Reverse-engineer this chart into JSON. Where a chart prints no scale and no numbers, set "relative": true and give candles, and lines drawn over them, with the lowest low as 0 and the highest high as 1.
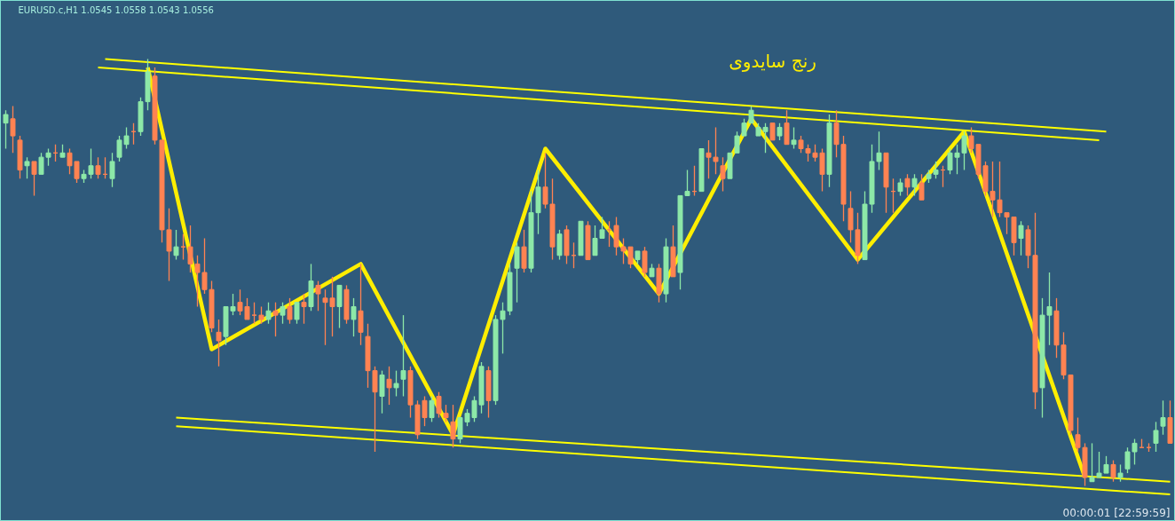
{
  "chart_data": {
    "type": "candlestick",
    "relative": true,
    "title": "رنج سایدوی",
    "tick_labels": false,
    "grid": false,
    "annotations": [
      "EURUSD.c,H1  1.0545 1.0558 1.0543 1.0556",
      "00:00:01 [22:59:59]"
    ],
    "categories": [
      null,
      null,
      null,
      null,
      null,
      null,
      null,
      null,
      null,
      null,
      null,
      null,
      null,
      null,
      null,
      null,
      null,
      null,
      null,
      null,
      null,
      null,
      null,
      null,
      null,
      null,
      null,
      null,
      null,
      null,
      null,
      null,
      null,
      null,
      null,
      null,
      null,
      null,
      null,
      null,
      null,
      null,
      null,
      null,
      null,
      null,
      null,
      null,
      null,
      null,
      null,
      null,
      null,
      null,
      null,
      null,
      null,
      null,
      null,
      null,
      null,
      null,
      null,
      null,
      null,
      null,
      null,
      null,
      null,
      null,
      null,
      null,
      null,
      null,
      null,
      null,
      null,
      null,
      null,
      null,
      null,
      null,
      null,
      null,
      null,
      null,
      null,
      null,
      null,
      null,
      null,
      null,
      null,
      null,
      null,
      null,
      null,
      null,
      null,
      null,
      null,
      null,
      null,
      null,
      null,
      null,
      null,
      null,
      null,
      null,
      null,
      null,
      null,
      null,
      null,
      null,
      null,
      null,
      null,
      null,
      null,
      null,
      null,
      null,
      null,
      null,
      null,
      null,
      null,
      null,
      null,
      null,
      null,
      null,
      null,
      null,
      null,
      null,
      null,
      null,
      null,
      null,
      null,
      null,
      null,
      null,
      null,
      null,
      null,
      null,
      null,
      null,
      null,
      null,
      null,
      null,
      null,
      null,
      null,
      null,
      null,
      null,
      null,
      null,
      null
    ],
    "series": [
      {
        "colors": [
          "#8de8a8",
          "#ff8352",
          "#ff8352",
          "#8de8a8",
          "#ff8352",
          "#8de8a8",
          "#8de8a8",
          "#ff8352",
          "#8de8a8",
          "#ff8352",
          "#ff8352",
          "#8de8a8",
          "#8de8a8",
          "#ff8352",
          "#ff8352",
          "#8de8a8",
          "#8de8a8",
          "#8de8a8",
          "#ff8352",
          "#8de8a8",
          "#8de8a8",
          "#ff8352",
          "#ff8352",
          "#ff8352",
          "#8de8a8",
          "#ff8352",
          "#ff8352",
          "#ff8352",
          "#ff8352",
          "#ff8352",
          "#ff8352",
          "#8de8a8",
          "#8de8a8",
          "#ff8352",
          "#ff8352",
          "#ff8352",
          "#ff8352",
          "#8de8a8",
          "#ff8352",
          "#8de8a8",
          "#ff8352",
          "#8de8a8",
          "#ff8352",
          "#8de8a8",
          "#ff8352",
          "#ff8352",
          "#ff8352",
          "#8de8a8",
          "#ff8352",
          "#8de8a8",
          "#ff8352",
          "#ff8352",
          "#ff8352",
          "#8de8a8",
          "#ff8352",
          "#8de8a8",
          "#8de8a8",
          "#ff8352",
          "#ff8352",
          "#ff8352",
          "#8de8a8",
          "#ff8352",
          "#ff8352",
          "#ff8352",
          "#8de8a8",
          "#8de8a8",
          "#8de8a8",
          "#8de8a8",
          "#ff8352",
          "#8de8a8",
          "#8de8a8",
          "#8de8a8",
          "#8de8a8",
          "#ff8352",
          "#8de8a8",
          "#8de8a8",
          "#ff8352",
          "#ff8352",
          "#8de8a8",
          "#ff8352",
          "#ff8352",
          "#8de8a8",
          "#ff8352",
          "#8de8a8",
          "#8de8a8",
          "#ff8352",
          "#ff8352",
          "#ff8352",
          "#ff8352",
          "#8de8a8",
          "#ff8352",
          "#8de8a8",
          "#ff8352",
          "#8de8a8",
          "#ff8352",
          "#8de8a8",
          "#8de8a8",
          "#ff8352",
          "#8de8a8",
          "#ff8352",
          "#ff8352",
          "#ff8352",
          "#8de8a8",
          "#8de8a8",
          "#8de8a8",
          "#8de8a8",
          "#8de8a8",
          "#8de8a8",
          "#ff8352",
          "#8de8a8",
          "#ff8352",
          "#8de8a8",
          "#ff8352",
          "#ff8352",
          "#ff8352",
          "#ff8352",
          "#8de8a8",
          "#ff8352",
          "#ff8352",
          "#ff8352",
          "#ff8352",
          "#8de8a8",
          "#8de8a8",
          "#8de8a8",
          "#ff8352",
          "#ff8352",
          "#8de8a8",
          "#ff8352",
          "#8de8a8",
          "#ff8352",
          "#8de8a8",
          "#8de8a8",
          "#ff8352",
          "#8de8a8",
          "#8de8a8",
          "#8de8a8",
          "#ff8352",
          "#ff8352",
          "#ff8352",
          "#ff8352",
          "#ff8352",
          "#ff8352",
          "#ff8352",
          "#8de8a8",
          "#ff8352",
          "#ff8352",
          "#8de8a8",
          "#8de8a8",
          "#ff8352",
          "#ff8352",
          "#ff8352",
          "#ff8352",
          "#ff8352",
          "#8de8a8",
          "#8de8a8",
          "#8de8a8",
          "#ff8352",
          "#8de8a8",
          "#8de8a8",
          "#8de8a8",
          "#ff8352",
          "#ff8352",
          "#8de8a8",
          "#8de8a8",
          "#ff8352"
        ],
        "ohlc": [
          [
            0.85,
            0.88,
            0.79,
            0.87
          ],
          [
            0.86,
            0.89,
            0.78,
            0.82
          ],
          [
            0.81,
            0.82,
            0.72,
            0.74
          ],
          [
            0.75,
            0.77,
            0.72,
            0.76
          ],
          [
            0.76,
            0.76,
            0.68,
            0.73
          ],
          [
            0.73,
            0.78,
            0.73,
            0.77
          ],
          [
            0.77,
            0.79,
            0.75,
            0.78
          ],
          [
            0.78,
            0.8,
            0.76,
            0.78
          ],
          [
            0.77,
            0.8,
            0.77,
            0.78
          ],
          [
            0.78,
            0.79,
            0.73,
            0.75
          ],
          [
            0.76,
            0.76,
            0.71,
            0.72
          ],
          [
            0.72,
            0.74,
            0.71,
            0.73
          ],
          [
            0.73,
            0.79,
            0.72,
            0.75
          ],
          [
            0.75,
            0.77,
            0.72,
            0.73
          ],
          [
            0.73,
            0.77,
            0.72,
            0.73
          ],
          [
            0.72,
            0.78,
            0.7,
            0.76
          ],
          [
            0.77,
            0.82,
            0.76,
            0.81
          ],
          [
            0.8,
            0.84,
            0.79,
            0.82
          ],
          [
            0.83,
            0.85,
            0.8,
            0.83
          ],
          [
            0.83,
            0.91,
            0.82,
            0.9
          ],
          [
            0.9,
            1.0,
            0.88,
            0.97
          ],
          [
            0.96,
            0.98,
            0.8,
            0.81
          ],
          [
            0.81,
            0.81,
            0.57,
            0.6
          ],
          [
            0.6,
            0.65,
            0.48,
            0.55
          ],
          [
            0.54,
            0.6,
            0.53,
            0.56
          ],
          [
            0.56,
            0.59,
            0.53,
            0.56
          ],
          [
            0.56,
            0.61,
            0.5,
            0.52
          ],
          [
            0.52,
            0.54,
            0.42,
            0.5
          ],
          [
            0.5,
            0.58,
            0.45,
            0.46
          ],
          [
            0.46,
            0.48,
            0.36,
            0.37
          ],
          [
            0.36,
            0.39,
            0.28,
            0.34
          ],
          [
            0.35,
            0.42,
            0.33,
            0.42
          ],
          [
            0.41,
            0.45,
            0.4,
            0.42
          ],
          [
            0.43,
            0.46,
            0.4,
            0.41
          ],
          [
            0.42,
            0.44,
            0.39,
            0.39
          ],
          [
            0.4,
            0.43,
            0.38,
            0.4
          ],
          [
            0.4,
            0.42,
            0.38,
            0.39
          ],
          [
            0.39,
            0.43,
            0.38,
            0.41
          ],
          [
            0.41,
            0.43,
            0.35,
            0.4
          ],
          [
            0.4,
            0.43,
            0.38,
            0.42
          ],
          [
            0.42,
            0.44,
            0.38,
            0.39
          ],
          [
            0.39,
            0.43,
            0.38,
            0.43
          ],
          [
            0.43,
            0.45,
            0.38,
            0.42
          ],
          [
            0.42,
            0.52,
            0.41,
            0.48
          ],
          [
            0.47,
            0.48,
            0.41,
            0.45
          ],
          [
            0.44,
            0.46,
            0.33,
            0.43
          ],
          [
            0.44,
            0.49,
            0.35,
            0.42
          ],
          [
            0.42,
            0.47,
            0.37,
            0.47
          ],
          [
            0.46,
            0.47,
            0.38,
            0.39
          ],
          [
            0.39,
            0.44,
            0.35,
            0.42
          ],
          [
            0.41,
            0.52,
            0.33,
            0.36
          ],
          [
            0.35,
            0.38,
            0.23,
            0.27
          ],
          [
            0.27,
            0.28,
            0.08,
            0.22
          ],
          [
            0.21,
            0.27,
            0.17,
            0.26
          ],
          [
            0.25,
            0.28,
            0.19,
            0.23
          ],
          [
            0.23,
            0.27,
            0.21,
            0.24
          ],
          [
            0.25,
            0.4,
            0.21,
            0.27
          ],
          [
            0.27,
            0.28,
            0.16,
            0.19
          ],
          [
            0.19,
            0.2,
            0.11,
            0.12
          ],
          [
            0.2,
            0.21,
            0.14,
            0.16
          ],
          [
            0.16,
            0.21,
            0.15,
            0.2
          ],
          [
            0.21,
            0.22,
            0.16,
            0.17
          ],
          [
            0.17,
            0.19,
            0.15,
            0.16
          ],
          [
            0.15,
            0.19,
            0.09,
            0.11
          ],
          [
            0.11,
            0.16,
            0.1,
            0.16
          ],
          [
            0.15,
            0.18,
            0.14,
            0.17
          ],
          [
            0.16,
            0.21,
            0.15,
            0.2
          ],
          [
            0.19,
            0.29,
            0.17,
            0.28
          ],
          [
            0.27,
            0.28,
            0.16,
            0.2
          ],
          [
            0.2,
            0.4,
            0.19,
            0.39
          ],
          [
            0.39,
            0.43,
            0.31,
            0.41
          ],
          [
            0.41,
            0.52,
            0.4,
            0.5
          ],
          [
            0.51,
            0.57,
            0.43,
            0.56
          ],
          [
            0.56,
            0.6,
            0.5,
            0.51
          ],
          [
            0.51,
            0.69,
            0.5,
            0.64
          ],
          [
            0.64,
            0.74,
            0.59,
            0.7
          ],
          [
            0.7,
            0.78,
            0.65,
            0.66
          ],
          [
            0.66,
            0.72,
            0.53,
            0.56
          ],
          [
            0.54,
            0.6,
            0.53,
            0.59
          ],
          [
            0.6,
            0.61,
            0.52,
            0.54
          ],
          [
            0.54,
            0.57,
            0.51,
            0.54
          ],
          [
            0.54,
            0.62,
            0.54,
            0.62
          ],
          [
            0.61,
            0.62,
            0.53,
            0.53
          ],
          [
            0.54,
            0.61,
            0.54,
            0.58
          ],
          [
            0.58,
            0.63,
            0.58,
            0.6
          ],
          [
            0.6,
            0.62,
            0.56,
            0.6
          ],
          [
            0.61,
            0.63,
            0.54,
            0.56
          ],
          [
            0.56,
            0.58,
            0.52,
            0.55
          ],
          [
            0.56,
            0.56,
            0.51,
            0.52
          ],
          [
            0.53,
            0.55,
            0.52,
            0.55
          ],
          [
            0.55,
            0.56,
            0.49,
            0.5
          ],
          [
            0.49,
            0.52,
            0.49,
            0.51
          ],
          [
            0.51,
            0.52,
            0.43,
            0.45
          ],
          [
            0.45,
            0.58,
            0.43,
            0.56
          ],
          [
            0.56,
            0.61,
            0.49,
            0.49
          ],
          [
            0.5,
            0.68,
            0.46,
            0.68
          ],
          [
            0.68,
            0.74,
            0.68,
            0.69
          ],
          [
            0.69,
            0.75,
            0.68,
            0.69
          ],
          [
            0.69,
            0.79,
            0.69,
            0.79
          ],
          [
            0.78,
            0.81,
            0.72,
            0.77
          ],
          [
            0.77,
            0.84,
            0.73,
            0.76
          ],
          [
            0.75,
            0.77,
            0.69,
            0.72
          ],
          [
            0.72,
            0.78,
            0.72,
            0.78
          ],
          [
            0.78,
            0.83,
            0.78,
            0.82
          ],
          [
            0.82,
            0.86,
            0.82,
            0.85
          ],
          [
            0.85,
            0.89,
            0.85,
            0.88
          ],
          [
            0.82,
            0.85,
            0.82,
            0.84
          ],
          [
            0.83,
            0.85,
            0.78,
            0.84
          ],
          [
            0.85,
            0.85,
            0.81,
            0.81
          ],
          [
            0.82,
            0.85,
            0.81,
            0.84
          ],
          [
            0.85,
            0.88,
            0.8,
            0.8
          ],
          [
            0.8,
            0.84,
            0.79,
            0.81
          ],
          [
            0.81,
            0.82,
            0.78,
            0.79
          ],
          [
            0.79,
            0.8,
            0.76,
            0.78
          ],
          [
            0.78,
            0.8,
            0.76,
            0.77
          ],
          [
            0.78,
            0.79,
            0.69,
            0.73
          ],
          [
            0.73,
            0.87,
            0.7,
            0.85
          ],
          [
            0.85,
            0.88,
            0.77,
            0.8
          ],
          [
            0.8,
            0.82,
            0.62,
            0.66
          ],
          [
            0.65,
            0.69,
            0.57,
            0.6
          ],
          [
            0.6,
            0.64,
            0.52,
            0.54
          ],
          [
            0.53,
            0.69,
            0.53,
            0.66
          ],
          [
            0.66,
            0.8,
            0.64,
            0.76
          ],
          [
            0.76,
            0.83,
            0.74,
            0.78
          ],
          [
            0.78,
            0.78,
            0.64,
            0.7
          ],
          [
            0.69,
            0.72,
            0.64,
            0.69
          ],
          [
            0.69,
            0.72,
            0.68,
            0.71
          ],
          [
            0.72,
            0.73,
            0.68,
            0.7
          ],
          [
            0.7,
            0.73,
            0.68,
            0.72
          ],
          [
            0.71,
            0.73,
            0.67,
            0.67
          ],
          [
            0.72,
            0.74,
            0.71,
            0.73
          ],
          [
            0.73,
            0.76,
            0.72,
            0.74
          ],
          [
            0.74,
            0.75,
            0.7,
            0.74
          ],
          [
            0.74,
            0.79,
            0.73,
            0.78
          ],
          [
            0.77,
            0.8,
            0.73,
            0.78
          ],
          [
            0.78,
            0.83,
            0.74,
            0.82
          ],
          [
            0.82,
            0.84,
            0.78,
            0.79
          ],
          [
            0.8,
            0.8,
            0.72,
            0.73
          ],
          [
            0.75,
            0.76,
            0.68,
            0.69
          ],
          [
            0.69,
            0.76,
            0.63,
            0.67
          ],
          [
            0.67,
            0.76,
            0.63,
            0.64
          ],
          [
            0.64,
            0.64,
            0.59,
            0.63
          ],
          [
            0.63,
            0.63,
            0.54,
            0.57
          ],
          [
            0.58,
            0.62,
            0.54,
            0.61
          ],
          [
            0.6,
            0.61,
            0.51,
            0.54
          ],
          [
            0.54,
            0.64,
            0.18,
            0.22
          ],
          [
            0.23,
            0.44,
            0.16,
            0.4
          ],
          [
            0.4,
            0.5,
            0.33,
            0.42
          ],
          [
            0.41,
            0.44,
            0.3,
            0.33
          ],
          [
            0.33,
            0.36,
            0.25,
            0.26
          ],
          [
            0.26,
            0.26,
            0.12,
            0.13
          ],
          [
            0.12,
            0.16,
            0.08,
            0.09
          ],
          [
            0.09,
            0.1,
            0.0,
            0.02
          ],
          [
            0.01,
            0.1,
            0.01,
            0.02
          ],
          [
            0.02,
            0.08,
            0.02,
            0.03
          ],
          [
            0.03,
            0.07,
            0.03,
            0.05
          ],
          [
            0.05,
            0.06,
            0.01,
            0.02
          ],
          [
            0.02,
            0.05,
            0.01,
            0.03
          ],
          [
            0.04,
            0.09,
            0.03,
            0.08
          ],
          [
            0.08,
            0.11,
            0.05,
            0.1
          ],
          [
            0.09,
            0.11,
            0.09,
            0.09
          ],
          [
            0.09,
            0.1,
            0.08,
            0.09
          ],
          [
            0.1,
            0.15,
            0.08,
            0.13
          ],
          [
            0.14,
            0.2,
            0.12,
            0.16
          ],
          [
            0.16,
            0.2,
            0.1,
            0.1
          ]
        ]
      },
      {
        "type": "line",
        "color": "#ffee00",
        "values": [
          null,
          null,
          null,
          null,
          null,
          null,
          null,
          null,
          null,
          null,
          null,
          null,
          null,
          null,
          null,
          null,
          null,
          null,
          null,
          null,
          0.98,
          null,
          null,
          null,
          null,
          null,
          null,
          null,
          null,
          0.32,
          null,
          null,
          null,
          null,
          null,
          null,
          null,
          null,
          null,
          null,
          null,
          null,
          null,
          null,
          null,
          null,
          null,
          null,
          null,
          null,
          0.52,
          null,
          null,
          null,
          null,
          null,
          null,
          null,
          null,
          null,
          null,
          null,
          null,
          0.12,
          null,
          null,
          null,
          null,
          null,
          null,
          null,
          null,
          null,
          null,
          null,
          null,
          0.79,
          null,
          null,
          null,
          null,
          null,
          null,
          null,
          null,
          null,
          null,
          null,
          null,
          null,
          null,
          null,
          0.45,
          null,
          null,
          null,
          null,
          null,
          null,
          null,
          null,
          null,
          null,
          null,
          null,
          0.86,
          null,
          null,
          null,
          null,
          null,
          null,
          null,
          null,
          null,
          null,
          null,
          null,
          null,
          null,
          0.53,
          null,
          null,
          null,
          null,
          null,
          null,
          null,
          null,
          null,
          null,
          null,
          null,
          null,
          null,
          0.83,
          null,
          null,
          null,
          null,
          null,
          null,
          null,
          null,
          null,
          null,
          null,
          null,
          null,
          null,
          null,
          null,
          0.02,
          null,
          null,
          null,
          null,
          null,
          null,
          null,
          null,
          null,
          null,
          null,
          null
        ]
      },
      {
        "type": "line",
        "color": "#ffff00",
        "values": [
          null,
          null,
          null,
          null,
          null,
          null,
          null,
          null,
          null,
          null,
          null,
          null,
          null,
          null,
          1.0,
          null,
          null,
          null,
          null,
          null,
          null,
          null,
          null,
          null,
          null,
          null,
          null,
          null,
          null,
          null,
          null,
          null,
          null,
          null,
          null,
          null,
          null,
          null,
          null,
          null,
          null,
          null,
          null,
          null,
          null,
          null,
          null,
          null,
          null,
          null,
          null,
          null,
          null,
          null,
          null,
          null,
          null,
          null,
          null,
          null,
          null,
          null,
          null,
          null,
          null,
          null,
          null,
          null,
          null,
          null,
          null,
          null,
          null,
          null,
          null,
          null,
          null,
          null,
          null,
          null,
          null,
          null,
          null,
          null,
          null,
          null,
          null,
          null,
          null,
          null,
          null,
          null,
          null,
          null,
          null,
          null,
          null,
          null,
          null,
          null,
          null,
          null,
          null,
          null,
          null,
          null,
          null,
          null,
          null,
          null,
          null,
          null,
          null,
          null,
          null,
          null,
          null,
          null,
          null,
          null,
          null,
          null,
          null,
          null,
          null,
          null,
          null,
          null,
          null,
          null,
          null,
          null,
          null,
          null,
          null,
          null,
          null,
          null,
          null,
          null,
          null,
          null,
          null,
          null,
          null,
          null,
          null,
          null,
          null,
          null,
          null,
          null,
          null,
          null,
          null,
          0.83,
          null,
          null,
          null,
          null,
          null,
          null,
          null,
          null,
          null
        ]
      },
      {
        "type": "line",
        "color": "#ffff00",
        "values": [
          null,
          null,
          null,
          null,
          null,
          null,
          null,
          null,
          null,
          null,
          null,
          null,
          null,
          0.98,
          null,
          null,
          null,
          null,
          null,
          null,
          null,
          null,
          null,
          null,
          null,
          null,
          null,
          null,
          null,
          null,
          null,
          null,
          null,
          null,
          null,
          null,
          null,
          null,
          null,
          null,
          null,
          null,
          null,
          null,
          null,
          null,
          null,
          null,
          null,
          null,
          null,
          null,
          null,
          null,
          null,
          null,
          null,
          null,
          null,
          null,
          null,
          null,
          null,
          null,
          null,
          null,
          null,
          null,
          null,
          null,
          null,
          null,
          null,
          null,
          null,
          null,
          null,
          null,
          null,
          null,
          null,
          null,
          null,
          null,
          null,
          null,
          null,
          null,
          null,
          null,
          null,
          null,
          null,
          null,
          null,
          null,
          null,
          null,
          null,
          null,
          null,
          null,
          null,
          null,
          null,
          null,
          null,
          null,
          null,
          null,
          null,
          null,
          null,
          null,
          null,
          null,
          null,
          null,
          null,
          null,
          null,
          null,
          null,
          null,
          null,
          null,
          null,
          null,
          null,
          null,
          null,
          null,
          null,
          null,
          null,
          null,
          null,
          null,
          null,
          null,
          null,
          null,
          null,
          null,
          null,
          null,
          null,
          null,
          null,
          null,
          null,
          null,
          null,
          null,
          0.81,
          null,
          null,
          null,
          null,
          null,
          null,
          null,
          null,
          null,
          null
        ]
      },
      {
        "type": "line",
        "color": "#ffff00",
        "values": [
          null,
          null,
          null,
          null,
          null,
          null,
          null,
          null,
          null,
          null,
          null,
          null,
          null,
          null,
          null,
          null,
          null,
          null,
          null,
          null,
          null,
          null,
          null,
          null,
          0.16,
          null,
          null,
          null,
          null,
          null,
          null,
          null,
          null,
          null,
          null,
          null,
          null,
          null,
          null,
          null,
          null,
          null,
          null,
          null,
          null,
          null,
          null,
          null,
          null,
          null,
          null,
          null,
          null,
          null,
          null,
          null,
          null,
          null,
          null,
          null,
          null,
          null,
          null,
          null,
          null,
          null,
          null,
          null,
          null,
          null,
          null,
          null,
          null,
          null,
          null,
          null,
          null,
          null,
          null,
          null,
          null,
          null,
          null,
          null,
          null,
          null,
          null,
          null,
          null,
          null,
          null,
          null,
          null,
          null,
          null,
          null,
          null,
          null,
          null,
          null,
          null,
          null,
          null,
          null,
          null,
          null,
          null,
          null,
          null,
          null,
          null,
          null,
          null,
          null,
          null,
          null,
          null,
          null,
          null,
          null,
          null,
          null,
          null,
          null,
          null,
          null,
          null,
          null,
          null,
          null,
          null,
          null,
          null,
          null,
          null,
          null,
          null,
          null,
          null,
          null,
          null,
          null,
          null,
          null,
          null,
          null,
          null,
          null,
          null,
          null,
          null,
          null,
          null,
          null,
          null,
          null,
          null,
          null,
          null,
          null,
          null,
          null,
          null,
          null,
          0.01
        ]
      },
      {
        "type": "line",
        "color": "#ffff00",
        "values": [
          null,
          null,
          null,
          null,
          null,
          null,
          null,
          null,
          null,
          null,
          null,
          null,
          null,
          null,
          null,
          null,
          null,
          null,
          null,
          null,
          null,
          null,
          null,
          null,
          0.14,
          null,
          null,
          null,
          null,
          null,
          null,
          null,
          null,
          null,
          null,
          null,
          null,
          null,
          null,
          null,
          null,
          null,
          null,
          null,
          null,
          null,
          null,
          null,
          null,
          null,
          null,
          null,
          null,
          null,
          null,
          null,
          null,
          null,
          null,
          null,
          null,
          null,
          null,
          null,
          null,
          null,
          null,
          null,
          null,
          null,
          null,
          null,
          null,
          null,
          null,
          null,
          null,
          null,
          null,
          null,
          null,
          null,
          null,
          null,
          null,
          null,
          null,
          null,
          null,
          null,
          null,
          null,
          null,
          null,
          null,
          null,
          null,
          null,
          null,
          null,
          null,
          null,
          null,
          null,
          null,
          null,
          null,
          null,
          null,
          null,
          null,
          null,
          null,
          null,
          null,
          null,
          null,
          null,
          null,
          null,
          null,
          null,
          null,
          null,
          null,
          null,
          null,
          null,
          null,
          null,
          null,
          null,
          null,
          null,
          null,
          null,
          null,
          null,
          null,
          null,
          null,
          null,
          null,
          null,
          null,
          null,
          null,
          null,
          null,
          null,
          null,
          null,
          null,
          null,
          null,
          null,
          null,
          null,
          null,
          null,
          null,
          null,
          null,
          null,
          -0.02
        ]
      }
    ]
  }
}
